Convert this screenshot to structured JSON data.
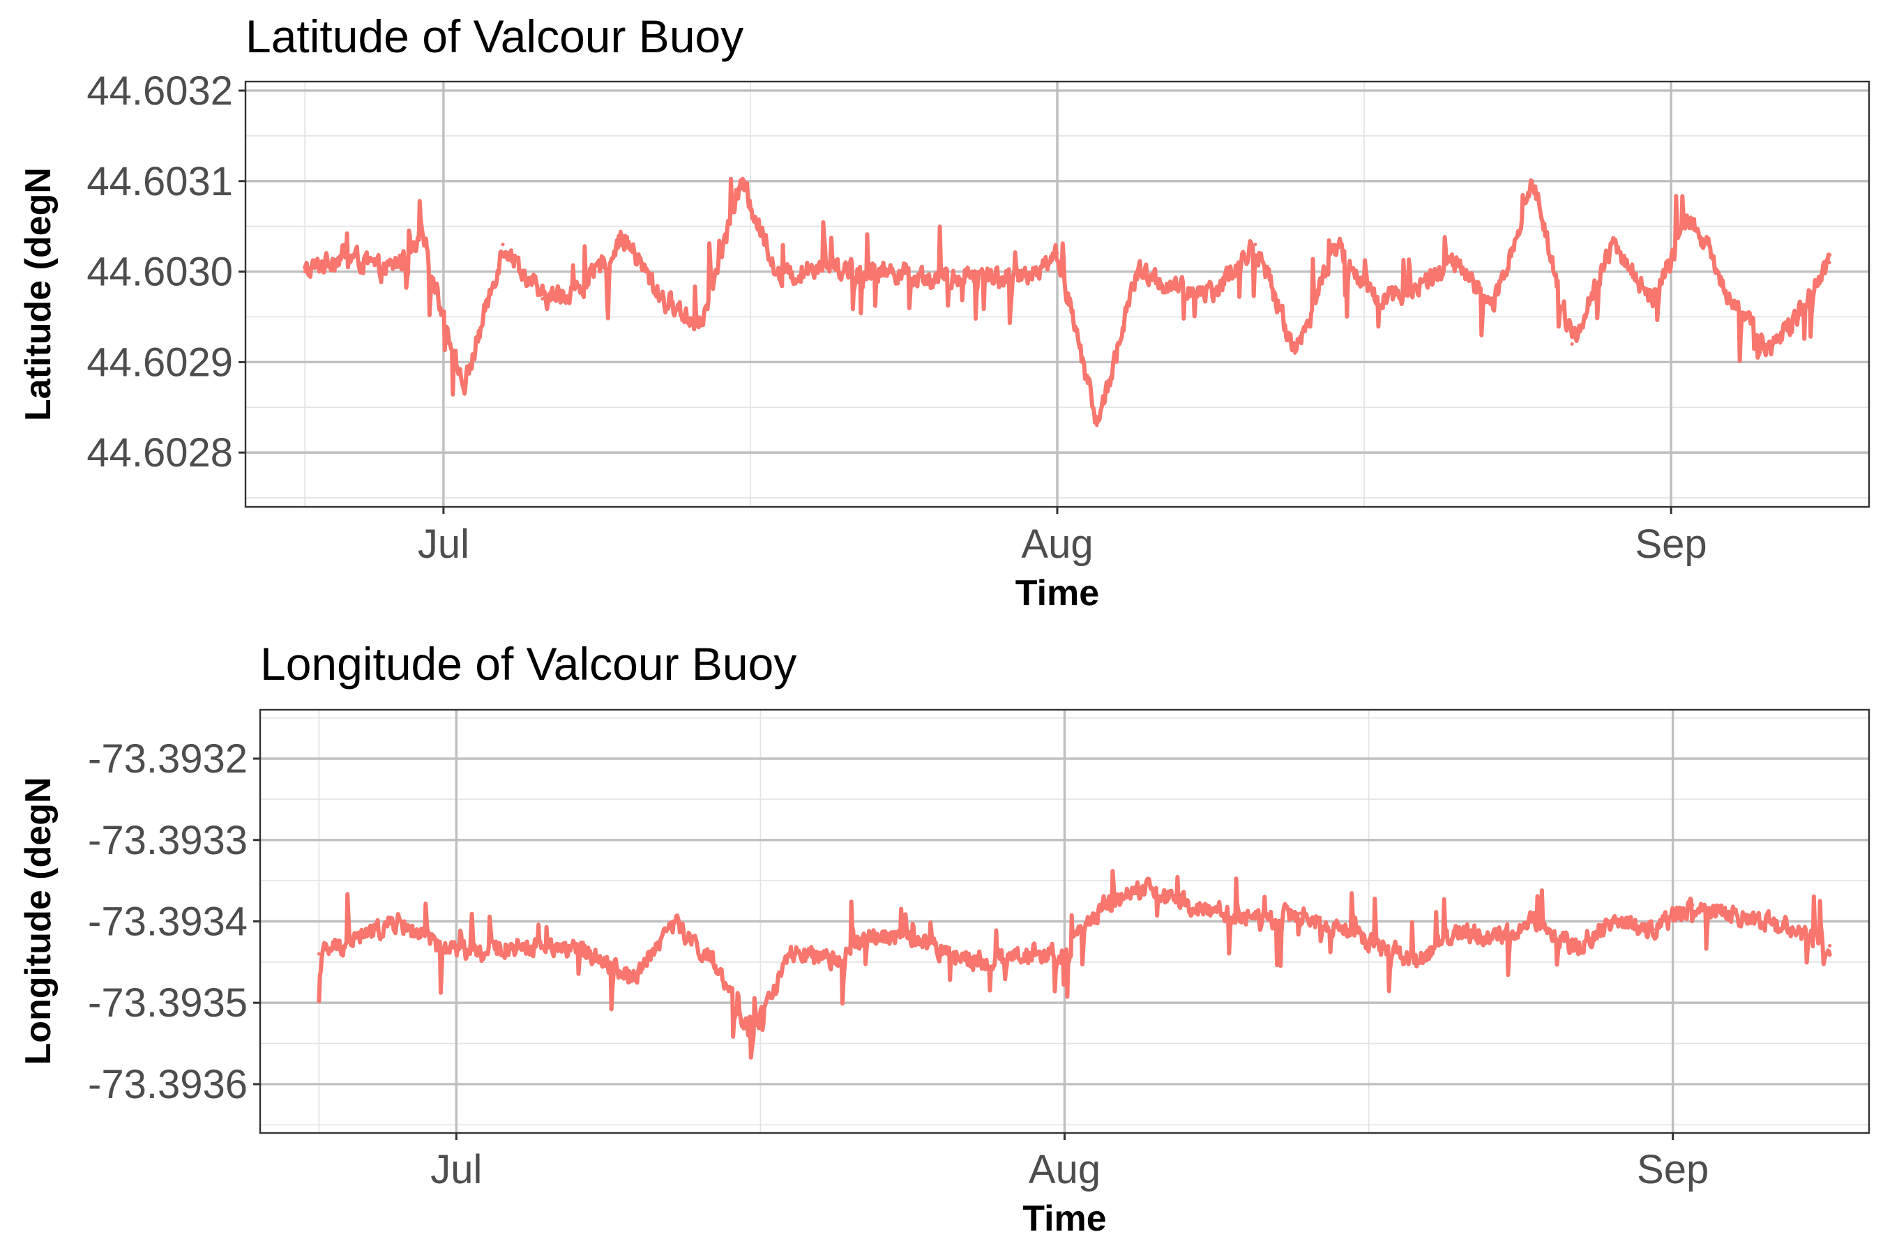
{
  "chart_data": [
    {
      "type": "line",
      "title": "Latitude of Valcour Buoy",
      "xlabel": "Time",
      "ylabel": "Latitude (degN",
      "x_range": [
        "2019-06-21",
        "2019-09-11"
      ],
      "x_ticks": [
        {
          "date": "2019-07-01",
          "label": "Jul"
        },
        {
          "date": "2019-08-01",
          "label": "Aug"
        },
        {
          "date": "2019-09-01",
          "label": "Sep"
        }
      ],
      "ylim": [
        44.60274,
        44.60321
      ],
      "y_ticks": [
        {
          "value": 44.6028,
          "label": "44.6028"
        },
        {
          "value": 44.6029,
          "label": "44.6029"
        },
        {
          "value": 44.603,
          "label": "44.6030"
        },
        {
          "value": 44.6031,
          "label": "44.6031"
        },
        {
          "value": 44.6032,
          "label": "44.6032"
        }
      ],
      "grid": true,
      "legend": "none",
      "line_color": "#f8766d",
      "series": [
        {
          "x": [
            "2019-06-24",
            "2019-06-26",
            "2019-06-28",
            "2019-06-30",
            "2019-07-02",
            "2019-07-04",
            "2019-07-06",
            "2019-07-08",
            "2019-07-10",
            "2019-07-12",
            "2019-07-14",
            "2019-07-16",
            "2019-07-18",
            "2019-07-20",
            "2019-07-22",
            "2019-07-24",
            "2019-07-26",
            "2019-07-28",
            "2019-07-30",
            "2019-08-01",
            "2019-08-03",
            "2019-08-05",
            "2019-08-07",
            "2019-08-09",
            "2019-08-11",
            "2019-08-13",
            "2019-08-15",
            "2019-08-17",
            "2019-08-19",
            "2019-08-21",
            "2019-08-23",
            "2019-08-25",
            "2019-08-27",
            "2019-08-29",
            "2019-08-31",
            "2019-09-02",
            "2019-09-04",
            "2019-09-06",
            "2019-09-09"
          ],
          "y": [
            44.603,
            44.60302,
            44.603,
            44.60303,
            44.60287,
            44.60303,
            44.60297,
            44.60298,
            44.60304,
            44.60297,
            44.60294,
            44.6031,
            44.60299,
            44.60301,
            44.603,
            44.603,
            44.60299,
            44.603,
            44.60299,
            44.60302,
            44.60283,
            44.603,
            44.60298,
            44.60298,
            44.60303,
            44.60291,
            44.60303,
            44.60297,
            44.60298,
            44.60301,
            44.60296,
            44.6031,
            44.60292,
            44.60303,
            44.60297,
            44.60306,
            44.60297,
            44.60291,
            44.60301
          ]
        }
      ]
    },
    {
      "type": "line",
      "title": "Longitude of Valcour Buoy",
      "xlabel": "Time",
      "ylabel": "Longitude (degN",
      "x_range": [
        "2019-06-21",
        "2019-09-11"
      ],
      "x_ticks": [
        {
          "date": "2019-07-01",
          "label": "Jul"
        },
        {
          "date": "2019-08-01",
          "label": "Aug"
        },
        {
          "date": "2019-09-01",
          "label": "Sep"
        }
      ],
      "ylim": [
        -73.39366,
        -73.39314
      ],
      "y_ticks": [
        {
          "value": -73.3936,
          "label": "-73.3936"
        },
        {
          "value": -73.3935,
          "label": "-73.3935"
        },
        {
          "value": -73.3934,
          "label": "-73.3934"
        },
        {
          "value": -73.3933,
          "label": "-73.3933"
        },
        {
          "value": -73.3932,
          "label": "-73.3932"
        }
      ],
      "grid": true,
      "legend": "none",
      "line_color": "#f8766d",
      "series": [
        {
          "x": [
            "2019-06-24",
            "2019-06-26",
            "2019-06-28",
            "2019-06-30",
            "2019-07-02",
            "2019-07-04",
            "2019-07-06",
            "2019-07-08",
            "2019-07-10",
            "2019-07-12",
            "2019-07-14",
            "2019-07-16",
            "2019-07-18",
            "2019-07-20",
            "2019-07-22",
            "2019-07-24",
            "2019-07-26",
            "2019-07-28",
            "2019-07-30",
            "2019-08-01",
            "2019-08-03",
            "2019-08-05",
            "2019-08-07",
            "2019-08-09",
            "2019-08-11",
            "2019-08-13",
            "2019-08-15",
            "2019-08-17",
            "2019-08-19",
            "2019-08-21",
            "2019-08-23",
            "2019-08-25",
            "2019-08-27",
            "2019-08-29",
            "2019-08-31",
            "2019-09-02",
            "2019-09-04",
            "2019-09-06",
            "2019-09-09"
          ],
          "y": [
            -73.39344,
            -73.39342,
            -73.3934,
            -73.39343,
            -73.39344,
            -73.39343,
            -73.39343,
            -73.39344,
            -73.39347,
            -73.3934,
            -73.39345,
            -73.39354,
            -73.39344,
            -73.39345,
            -73.39342,
            -73.39342,
            -73.39344,
            -73.39345,
            -73.39344,
            -73.39344,
            -73.39338,
            -73.39336,
            -73.39338,
            -73.39339,
            -73.3934,
            -73.39339,
            -73.39341,
            -73.39343,
            -73.39345,
            -73.39341,
            -73.39342,
            -73.3934,
            -73.39343,
            -73.3934,
            -73.39341,
            -73.39338,
            -73.39339,
            -73.3934,
            -73.39343
          ]
        }
      ]
    }
  ]
}
